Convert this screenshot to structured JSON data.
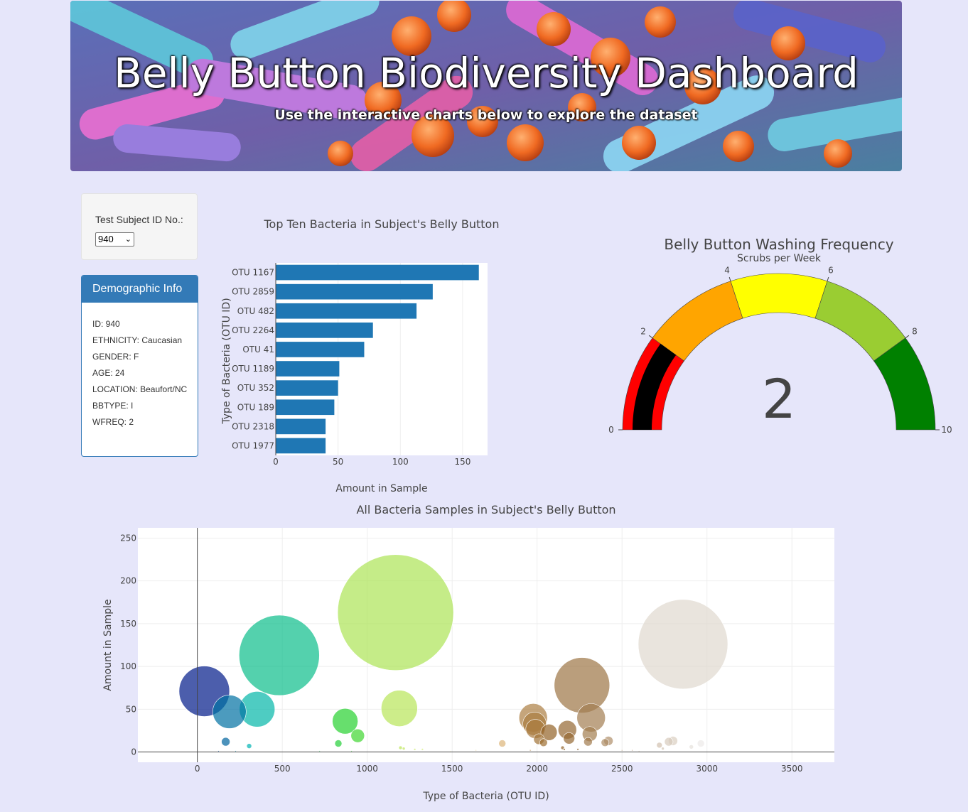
{
  "banner": {
    "title": "Belly Button Biodiversity Dashboard",
    "subtitle": "Use the interactive charts below to explore the dataset"
  },
  "selector": {
    "label": "Test Subject ID No.:",
    "selected": "940"
  },
  "demographics": {
    "heading": "Demographic Info",
    "items": [
      "ID: 940",
      "ETHNICITY: Caucasian",
      "GENDER: F",
      "AGE: 24",
      "LOCATION: Beaufort/NC",
      "BBTYPE: I",
      "WFREQ: 2"
    ]
  },
  "colors": {
    "bar": "#1f77b4",
    "page_bg": "#e6e6fa",
    "panel_head": "#337ab7",
    "gauge_steps": [
      "#ff0000",
      "#ffa500",
      "#ffff00",
      "#9acd32",
      "#008000"
    ],
    "gauge_needle": "#000000"
  },
  "chart_data": [
    {
      "type": "bar",
      "orientation": "horizontal",
      "title": "Top Ten Bacteria in Subject's Belly Button",
      "xlabel": "Amount in Sample",
      "ylabel": "Type of Bacteria (OTU ID)",
      "categories": [
        "OTU 1167",
        "OTU 2859",
        "OTU 482",
        "OTU 2264",
        "OTU 41",
        "OTU 1189",
        "OTU 352",
        "OTU 189",
        "OTU 2318",
        "OTU 1977"
      ],
      "values": [
        163,
        126,
        113,
        78,
        71,
        51,
        50,
        47,
        40,
        40
      ],
      "xlim": [
        0,
        170
      ],
      "xticks": [
        0,
        50,
        100,
        150
      ]
    },
    {
      "type": "gauge",
      "title": "Belly Button Washing Frequency",
      "subtitle": "Scrubs per Week",
      "value": 2,
      "range": [
        0,
        10
      ],
      "ticks": [
        0,
        2,
        4,
        6,
        8,
        10
      ],
      "steps": [
        [
          0,
          2
        ],
        [
          2,
          4
        ],
        [
          4,
          6
        ],
        [
          6,
          8
        ],
        [
          8,
          10
        ]
      ]
    },
    {
      "type": "scatter",
      "marker": "bubble",
      "title": "All Bacteria Samples in Subject's Belly Button",
      "xlabel": "Type of Bacteria (OTU ID)",
      "ylabel": "Amount in Sample",
      "xlim": [
        -350,
        3750
      ],
      "ylim": [
        -12,
        262
      ],
      "xticks": [
        0,
        500,
        1000,
        1500,
        2000,
        2500,
        3000,
        3500
      ],
      "yticks": [
        0,
        50,
        100,
        150,
        200,
        250
      ],
      "points": [
        {
          "x": 41,
          "y": 71
        },
        {
          "x": 167,
          "y": 12
        },
        {
          "x": 189,
          "y": 47
        },
        {
          "x": 305,
          "y": 7
        },
        {
          "x": 352,
          "y": 50
        },
        {
          "x": 482,
          "y": 113
        },
        {
          "x": 830,
          "y": 10
        },
        {
          "x": 870,
          "y": 36
        },
        {
          "x": 944,
          "y": 19
        },
        {
          "x": 1167,
          "y": 163
        },
        {
          "x": 1189,
          "y": 51
        },
        {
          "x": 1795,
          "y": 10
        },
        {
          "x": 1977,
          "y": 40
        },
        {
          "x": 1985,
          "y": 33
        },
        {
          "x": 1990,
          "y": 27
        },
        {
          "x": 2011,
          "y": 15
        },
        {
          "x": 2038,
          "y": 11
        },
        {
          "x": 2070,
          "y": 23
        },
        {
          "x": 2178,
          "y": 26
        },
        {
          "x": 2188,
          "y": 16
        },
        {
          "x": 2264,
          "y": 78
        },
        {
          "x": 2318,
          "y": 40
        },
        {
          "x": 2310,
          "y": 21
        },
        {
          "x": 2300,
          "y": 12
        },
        {
          "x": 2400,
          "y": 11
        },
        {
          "x": 2420,
          "y": 13
        },
        {
          "x": 2859,
          "y": 126
        },
        {
          "x": 2720,
          "y": 8
        },
        {
          "x": 2775,
          "y": 12
        },
        {
          "x": 2800,
          "y": 13
        },
        {
          "x": 2908,
          "y": 6
        },
        {
          "x": 2964,
          "y": 10
        },
        {
          "x": 125,
          "y": 1
        },
        {
          "x": 225,
          "y": 1
        },
        {
          "x": 720,
          "y": 1
        },
        {
          "x": 908,
          "y": 1
        },
        {
          "x": 1196,
          "y": 5
        },
        {
          "x": 1215,
          "y": 4
        },
        {
          "x": 1280,
          "y": 3
        },
        {
          "x": 1325,
          "y": 3
        },
        {
          "x": 1490,
          "y": 1
        },
        {
          "x": 1640,
          "y": 2
        },
        {
          "x": 1960,
          "y": 2
        },
        {
          "x": 2150,
          "y": 5
        },
        {
          "x": 2160,
          "y": 3
        },
        {
          "x": 2240,
          "y": 3
        },
        {
          "x": 2500,
          "y": 2
        },
        {
          "x": 2560,
          "y": 2
        },
        {
          "x": 2600,
          "y": 1
        },
        {
          "x": 2740,
          "y": 4
        }
      ]
    }
  ]
}
